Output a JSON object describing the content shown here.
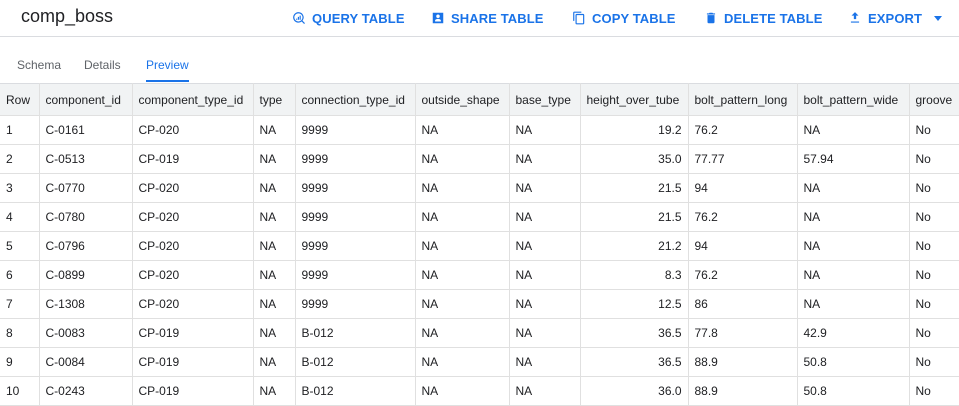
{
  "header": {
    "title": "comp_boss",
    "actions": {
      "query": "QUERY TABLE",
      "share": "SHARE TABLE",
      "copy": "COPY TABLE",
      "delete": "DELETE TABLE",
      "export": "EXPORT"
    }
  },
  "tabs": {
    "schema": "Schema",
    "details": "Details",
    "preview": "Preview",
    "active": "preview"
  },
  "table": {
    "columns": [
      "Row",
      "component_id",
      "component_type_id",
      "type",
      "connection_type_id",
      "outside_shape",
      "base_type",
      "height_over_tube",
      "bolt_pattern_long",
      "bolt_pattern_wide",
      "groove"
    ],
    "rows": [
      [
        "1",
        "C-0161",
        "CP-020",
        "NA",
        "9999",
        "NA",
        "NA",
        "19.2",
        "76.2",
        "NA",
        "No"
      ],
      [
        "2",
        "C-0513",
        "CP-019",
        "NA",
        "9999",
        "NA",
        "NA",
        "35.0",
        "77.77",
        "57.94",
        "No"
      ],
      [
        "3",
        "C-0770",
        "CP-020",
        "NA",
        "9999",
        "NA",
        "NA",
        "21.5",
        "94",
        "NA",
        "No"
      ],
      [
        "4",
        "C-0780",
        "CP-020",
        "NA",
        "9999",
        "NA",
        "NA",
        "21.5",
        "76.2",
        "NA",
        "No"
      ],
      [
        "5",
        "C-0796",
        "CP-020",
        "NA",
        "9999",
        "NA",
        "NA",
        "21.2",
        "94",
        "NA",
        "No"
      ],
      [
        "6",
        "C-0899",
        "CP-020",
        "NA",
        "9999",
        "NA",
        "NA",
        "8.3",
        "76.2",
        "NA",
        "No"
      ],
      [
        "7",
        "C-1308",
        "CP-020",
        "NA",
        "9999",
        "NA",
        "NA",
        "12.5",
        "86",
        "NA",
        "No"
      ],
      [
        "8",
        "C-0083",
        "CP-019",
        "NA",
        "B-012",
        "NA",
        "NA",
        "36.5",
        "77.8",
        "42.9",
        "No"
      ],
      [
        "9",
        "C-0084",
        "CP-019",
        "NA",
        "B-012",
        "NA",
        "NA",
        "36.5",
        "88.9",
        "50.8",
        "No"
      ],
      [
        "10",
        "C-0243",
        "CP-019",
        "NA",
        "B-012",
        "NA",
        "NA",
        "36.0",
        "88.9",
        "50.8",
        "No"
      ]
    ]
  },
  "colors": {
    "accent": "#1a73e8",
    "header_bg": "#f1f3f4",
    "border": "#e0e0e0"
  },
  "icons": {
    "query": "query-table-icon",
    "share": "share-table-icon",
    "copy": "copy-table-icon",
    "delete": "delete-table-icon",
    "export": "export-icon",
    "dropdown": "chevron-down-icon"
  }
}
